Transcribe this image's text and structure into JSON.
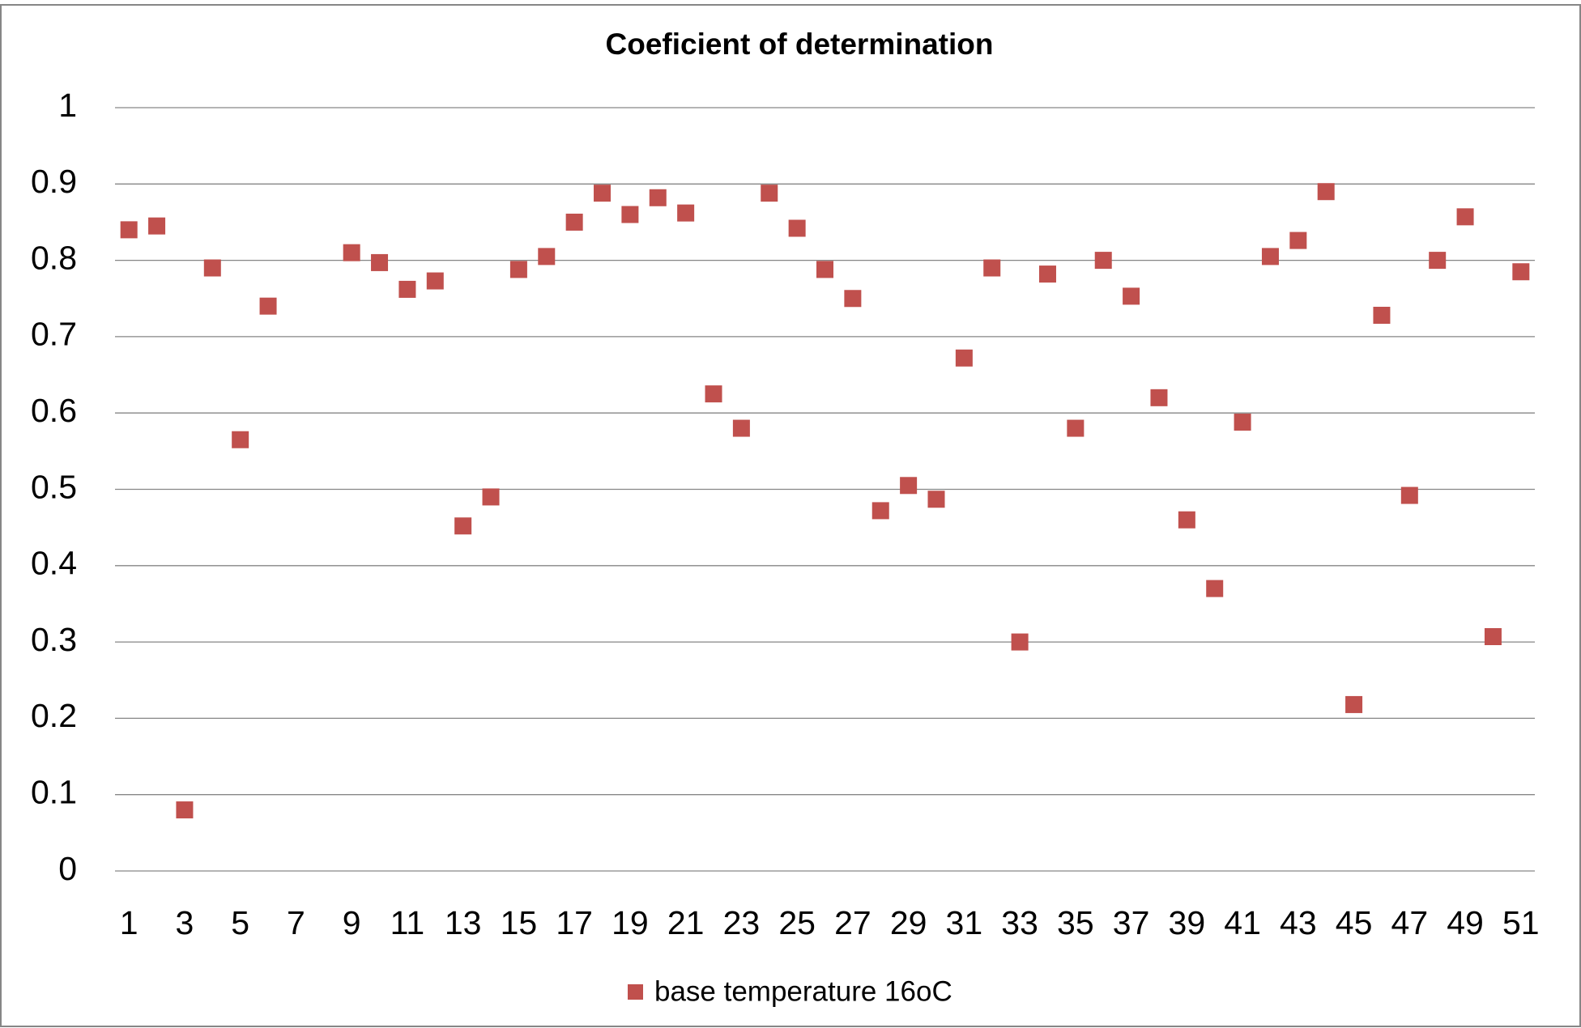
{
  "chart_data": {
    "type": "scatter",
    "title": "Coeficient of determination",
    "categories": [
      "1",
      null,
      "3",
      null,
      "5",
      null,
      "7",
      null,
      "9",
      null,
      "11",
      null,
      "13",
      null,
      "15",
      null,
      "17",
      null,
      "19",
      null,
      "21",
      null,
      "23",
      null,
      "25",
      null,
      "27",
      null,
      "29",
      null,
      "31",
      null,
      "33",
      null,
      "35",
      null,
      "37",
      null,
      "39",
      null,
      "41",
      null,
      "43",
      null,
      "45",
      null,
      "47",
      null,
      "49",
      null,
      "51"
    ],
    "series": [
      {
        "name": "base temperature 16oC",
        "color": "#c0504d",
        "values": [
          0.84,
          0.845,
          0.08,
          0.79,
          0.565,
          0.74,
          null,
          null,
          0.81,
          0.797,
          0.762,
          0.773,
          0.452,
          0.49,
          0.788,
          0.805,
          0.85,
          0.888,
          0.86,
          0.882,
          0.862,
          0.625,
          0.58,
          0.888,
          0.842,
          0.788,
          0.75,
          0.472,
          0.505,
          0.487,
          0.672,
          0.79,
          0.3,
          0.782,
          0.58,
          0.8,
          0.753,
          0.62,
          0.46,
          0.37,
          0.588,
          0.805,
          0.826,
          0.89,
          0.218,
          0.728,
          0.492,
          0.8,
          0.857,
          0.307,
          0.785
        ]
      }
    ],
    "ylim": [
      0,
      1
    ],
    "yticks": [
      0,
      0.1,
      0.2,
      0.3,
      0.4,
      0.5,
      0.6,
      0.7,
      0.8,
      0.9,
      1
    ],
    "grid": true,
    "legend": "bottom"
  }
}
